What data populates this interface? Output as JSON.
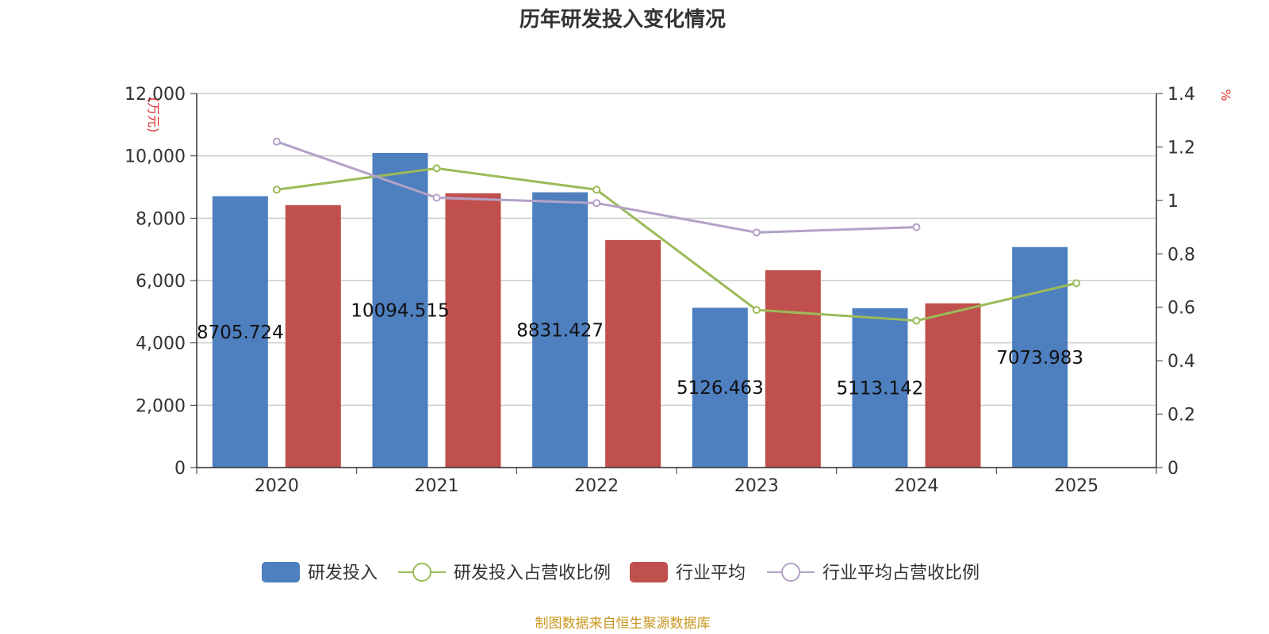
{
  "chart_data": {
    "type": "bar",
    "title": "历年研发投入变化情况",
    "categories": [
      "2020",
      "2021",
      "2022",
      "2023",
      "2024",
      "2025"
    ],
    "y_left": {
      "label": "(万元)",
      "ticks": [
        "0",
        "2,000",
        "4,000",
        "6,000",
        "8,000",
        "10,000",
        "12,000"
      ],
      "range": [
        0,
        12000
      ]
    },
    "y_right": {
      "label": "%",
      "ticks": [
        "0",
        "0.2",
        "0.4",
        "0.6",
        "0.8",
        "1",
        "1.2",
        "1.4"
      ],
      "range": [
        0,
        1.4
      ]
    },
    "series": [
      {
        "name": "研发投入",
        "type": "bar",
        "axis": "left",
        "color": "#4e7fbf",
        "values": [
          8705.724,
          10094.515,
          8831.427,
          5126.463,
          5113.142,
          7073.983
        ],
        "labels": [
          "8705.724",
          "10094.515",
          "8831.427",
          "5126.463",
          "5113.142",
          "7073.983"
        ]
      },
      {
        "name": "研发投入占营收比例",
        "type": "line",
        "axis": "right",
        "color": "#9bbb59",
        "values": [
          1.04,
          1.12,
          1.04,
          0.59,
          0.55,
          0.69
        ]
      },
      {
        "name": "行业平均",
        "type": "bar",
        "axis": "left",
        "color": "#c0504d",
        "values": [
          8420,
          8800,
          7300,
          6330,
          5270,
          null
        ]
      },
      {
        "name": "行业平均占营收比例",
        "type": "line",
        "axis": "right",
        "color": "#b3a2c7",
        "values": [
          1.22,
          1.01,
          0.99,
          0.88,
          0.9,
          null
        ]
      }
    ],
    "legend_position": "bottom",
    "grid": true
  },
  "source": "制图数据来自恒生聚源数据库",
  "colors": {
    "title": "#333333",
    "axis_label": "#e03030",
    "source": "#c8961e",
    "grid": "#cccccc",
    "axis": "#333333"
  }
}
